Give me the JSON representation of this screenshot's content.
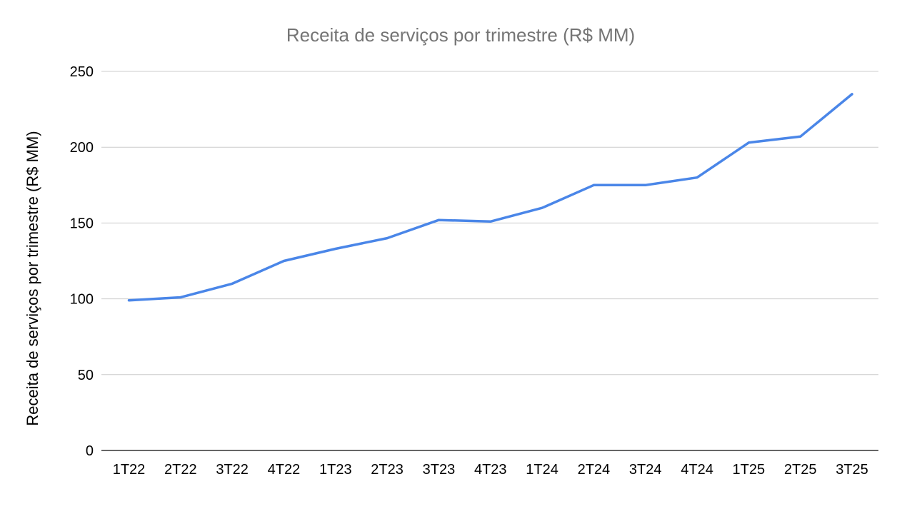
{
  "chart_data": {
    "type": "line",
    "title": "Receita de serviços por trimestre (R$ MM)",
    "xlabel": "",
    "ylabel": "Receita de serviços por trimestre (R$ MM)",
    "categories": [
      "1T22",
      "2T22",
      "3T22",
      "4T22",
      "1T23",
      "2T23",
      "3T23",
      "4T23",
      "1T24",
      "2T24",
      "3T24",
      "4T24",
      "1T25",
      "2T25",
      "3T25"
    ],
    "series": [
      {
        "values": [
          99,
          101,
          110,
          125,
          133,
          140,
          152,
          151,
          160,
          175,
          175,
          180,
          203,
          207,
          235
        ],
        "color": "#4a86e8"
      }
    ],
    "ylim": [
      0,
      250
    ],
    "yticks": [
      0,
      50,
      100,
      150,
      200,
      250
    ],
    "grid": true,
    "legend": "none"
  }
}
